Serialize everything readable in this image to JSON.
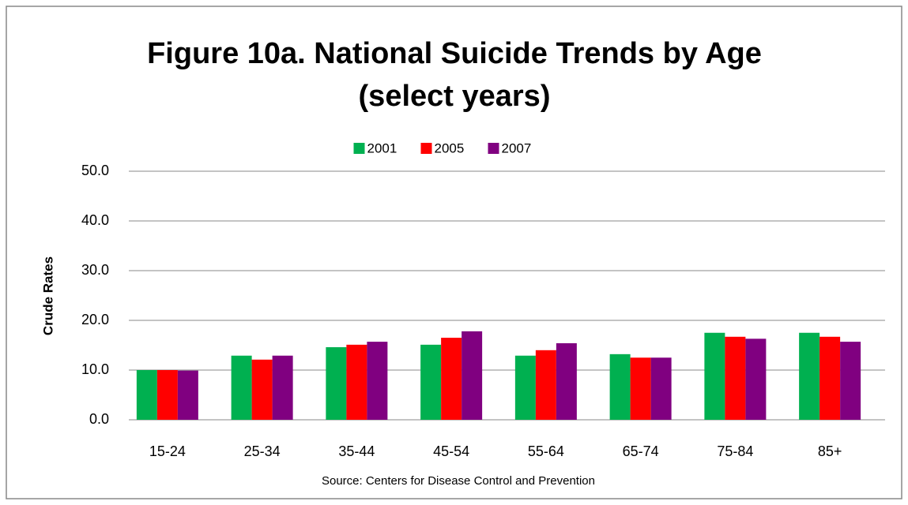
{
  "chart_data": {
    "type": "bar",
    "title": "Figure 10a. National Suicide Trends by Age",
    "subtitle": "(select years)",
    "y_label": "Crude Rates",
    "source": "Source: Centers for Disease Control and Prevention",
    "categories": [
      "15-24",
      "25-34",
      "35-44",
      "45-54",
      "55-64",
      "65-74",
      "75-84",
      "85+"
    ],
    "series": [
      {
        "name": "2001",
        "color": "#00b050",
        "values": [
          10.0,
          12.9,
          14.6,
          15.1,
          12.9,
          13.2,
          17.5,
          17.5
        ]
      },
      {
        "name": "2005",
        "color": "#ff0000",
        "values": [
          10.0,
          12.1,
          15.1,
          16.5,
          14.0,
          12.5,
          16.7,
          16.7
        ]
      },
      {
        "name": "2007",
        "color": "#800080",
        "values": [
          9.9,
          12.9,
          15.7,
          17.8,
          15.4,
          12.5,
          16.3,
          15.7
        ]
      }
    ],
    "ylim": [
      0,
      50
    ],
    "yticks": [
      {
        "value": 0,
        "label": "0.0"
      },
      {
        "value": 10,
        "label": "10.0"
      },
      {
        "value": 20,
        "label": "20.0"
      },
      {
        "value": 30,
        "label": "30.0"
      },
      {
        "value": 40,
        "label": "40.0"
      },
      {
        "value": 50,
        "label": "50.0"
      }
    ],
    "grid": true,
    "legend": "top"
  }
}
